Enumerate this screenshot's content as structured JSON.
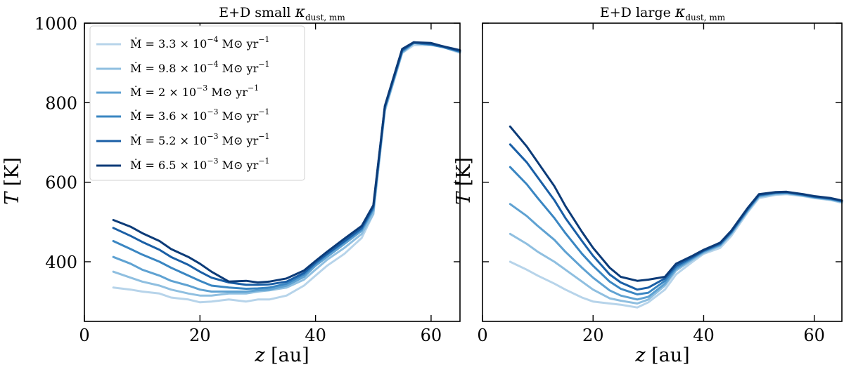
{
  "chart_data": [
    {
      "type": "line",
      "title": {
        "main": "E+D small ",
        "symbol": "κ",
        "subscript": "dust, mm"
      },
      "xlabel": {
        "var": "z",
        "unit": " [au]"
      },
      "ylabel": {
        "var": "T",
        "unit": " [K]"
      },
      "xlim": [
        0,
        65
      ],
      "ylim": [
        250,
        1000
      ],
      "xticks": [
        0,
        20,
        40,
        60
      ],
      "yticks": [
        400,
        600,
        800,
        1000
      ],
      "show_ytick_labels": true,
      "legend": "top-left",
      "series": [
        {
          "name": "Mdot_3.3e-4",
          "x": [
            5,
            8,
            10,
            13,
            15,
            18,
            20,
            22,
            25,
            28,
            30,
            32,
            35,
            38,
            40,
            42,
            45,
            48,
            50,
            52,
            55,
            57,
            60,
            62,
            65
          ],
          "y": [
            335,
            330,
            325,
            320,
            310,
            305,
            298,
            300,
            305,
            300,
            305,
            305,
            315,
            340,
            365,
            390,
            420,
            460,
            520,
            780,
            925,
            945,
            945,
            940,
            925
          ]
        },
        {
          "name": "Mdot_9.8e-4",
          "x": [
            5,
            8,
            10,
            13,
            15,
            18,
            20,
            22,
            25,
            28,
            30,
            32,
            35,
            38,
            40,
            42,
            45,
            48,
            50,
            52,
            55,
            57,
            60,
            62,
            65
          ],
          "y": [
            375,
            360,
            350,
            340,
            330,
            320,
            315,
            315,
            320,
            320,
            325,
            328,
            335,
            355,
            380,
            405,
            435,
            470,
            520,
            780,
            925,
            950,
            948,
            940,
            928
          ]
        },
        {
          "name": "Mdot_2e-3",
          "x": [
            5,
            8,
            10,
            13,
            15,
            18,
            20,
            22,
            25,
            28,
            30,
            32,
            35,
            38,
            40,
            42,
            45,
            48,
            50,
            52,
            55,
            57,
            60,
            62,
            65
          ],
          "y": [
            412,
            395,
            380,
            365,
            352,
            340,
            330,
            325,
            325,
            325,
            328,
            330,
            340,
            362,
            390,
            412,
            445,
            478,
            530,
            785,
            928,
            950,
            946,
            940,
            928
          ]
        },
        {
          "name": "Mdot_3.6e-3",
          "x": [
            5,
            8,
            10,
            13,
            15,
            18,
            20,
            22,
            25,
            28,
            30,
            32,
            35,
            38,
            40,
            42,
            45,
            48,
            50,
            52,
            55,
            57,
            60,
            62,
            65
          ],
          "y": [
            452,
            432,
            418,
            400,
            385,
            365,
            352,
            340,
            335,
            332,
            333,
            335,
            345,
            368,
            395,
            418,
            450,
            482,
            535,
            788,
            930,
            950,
            946,
            940,
            928
          ]
        },
        {
          "name": "Mdot_5.2e-3",
          "x": [
            5,
            8,
            10,
            13,
            15,
            18,
            20,
            22,
            25,
            28,
            30,
            32,
            35,
            38,
            40,
            42,
            45,
            48,
            50,
            52,
            55,
            57,
            60,
            62,
            65
          ],
          "y": [
            485,
            465,
            450,
            430,
            412,
            392,
            375,
            360,
            348,
            342,
            342,
            343,
            350,
            372,
            398,
            420,
            452,
            485,
            538,
            790,
            932,
            952,
            948,
            942,
            930
          ]
        },
        {
          "name": "Mdot_6.5e-3",
          "x": [
            5,
            8,
            10,
            13,
            15,
            18,
            20,
            22,
            25,
            28,
            30,
            32,
            35,
            38,
            40,
            42,
            45,
            48,
            50,
            52,
            55,
            57,
            60,
            62,
            65
          ],
          "y": [
            505,
            488,
            472,
            452,
            432,
            412,
            395,
            375,
            350,
            352,
            348,
            350,
            358,
            378,
            402,
            425,
            458,
            490,
            542,
            792,
            935,
            952,
            950,
            942,
            932
          ]
        }
      ]
    },
    {
      "type": "line",
      "title": {
        "main": "E+D large ",
        "symbol": "κ",
        "subscript": "dust, mm"
      },
      "xlabel": {
        "var": "z",
        "unit": " [au]"
      },
      "ylabel": {
        "var": "T",
        "unit": " [K]"
      },
      "xlim": [
        0,
        65
      ],
      "ylim": [
        250,
        1000
      ],
      "xticks": [
        0,
        20,
        40,
        60
      ],
      "yticks": [
        400,
        600,
        800,
        1000
      ],
      "show_ytick_labels": false,
      "series": [
        {
          "name": "Mdot_3.3e-4",
          "x": [
            5,
            8,
            10,
            13,
            15,
            18,
            20,
            23,
            25,
            28,
            30,
            33,
            35,
            38,
            40,
            43,
            45,
            48,
            50,
            53,
            55,
            58,
            60,
            63,
            65
          ],
          "y": [
            400,
            380,
            365,
            345,
            330,
            310,
            300,
            295,
            292,
            285,
            298,
            330,
            368,
            400,
            420,
            435,
            465,
            525,
            560,
            568,
            570,
            565,
            560,
            555,
            548
          ]
        },
        {
          "name": "Mdot_9.8e-4",
          "x": [
            5,
            8,
            10,
            13,
            15,
            18,
            20,
            23,
            25,
            28,
            30,
            33,
            35,
            38,
            40,
            43,
            45,
            48,
            50,
            53,
            55,
            58,
            60,
            63,
            65
          ],
          "y": [
            470,
            445,
            425,
            400,
            380,
            350,
            330,
            308,
            302,
            295,
            305,
            340,
            378,
            405,
            422,
            440,
            470,
            528,
            563,
            570,
            572,
            566,
            561,
            556,
            550
          ]
        },
        {
          "name": "Mdot_2e-3",
          "x": [
            5,
            8,
            10,
            13,
            15,
            18,
            20,
            23,
            25,
            28,
            30,
            33,
            35,
            38,
            40,
            43,
            45,
            48,
            50,
            53,
            55,
            58,
            60,
            63,
            65
          ],
          "y": [
            545,
            515,
            490,
            455,
            425,
            385,
            360,
            328,
            315,
            305,
            312,
            345,
            382,
            408,
            425,
            442,
            472,
            530,
            565,
            572,
            573,
            567,
            562,
            557,
            551
          ]
        },
        {
          "name": "Mdot_3.6e-3",
          "x": [
            5,
            8,
            10,
            13,
            15,
            18,
            20,
            23,
            25,
            28,
            30,
            33,
            35,
            38,
            40,
            43,
            45,
            48,
            50,
            53,
            55,
            58,
            60,
            63,
            65
          ],
          "y": [
            638,
            595,
            560,
            510,
            472,
            420,
            390,
            350,
            332,
            318,
            322,
            352,
            386,
            410,
            427,
            444,
            474,
            532,
            567,
            573,
            574,
            568,
            563,
            558,
            552
          ]
        },
        {
          "name": "Mdot_5.2e-3",
          "x": [
            5,
            8,
            10,
            13,
            15,
            18,
            20,
            23,
            25,
            28,
            30,
            33,
            35,
            38,
            40,
            43,
            45,
            48,
            50,
            53,
            55,
            58,
            60,
            63,
            65
          ],
          "y": [
            695,
            650,
            612,
            555,
            510,
            452,
            415,
            368,
            348,
            330,
            335,
            358,
            390,
            412,
            428,
            446,
            476,
            534,
            568,
            574,
            575,
            569,
            564,
            559,
            553
          ]
        },
        {
          "name": "Mdot_6.5e-3",
          "x": [
            5,
            8,
            10,
            13,
            15,
            18,
            20,
            23,
            25,
            28,
            30,
            33,
            35,
            38,
            40,
            43,
            45,
            48,
            50,
            53,
            55,
            58,
            60,
            63,
            65
          ],
          "y": [
            740,
            690,
            650,
            590,
            540,
            475,
            435,
            385,
            362,
            352,
            355,
            362,
            395,
            415,
            430,
            448,
            478,
            536,
            570,
            575,
            576,
            570,
            565,
            560,
            554
          ]
        }
      ]
    }
  ],
  "legend": {
    "items": [
      {
        "label": "Ṁ = 3.3 × 10",
        "exp": "−4",
        "unit": " M⊙ yr",
        "unit_exp": "−1"
      },
      {
        "label": "Ṁ = 9.8 × 10",
        "exp": "−4",
        "unit": " M⊙ yr",
        "unit_exp": "−1"
      },
      {
        "label": "Ṁ = 2 × 10",
        "exp": "−3",
        "unit": " M⊙ yr",
        "unit_exp": "−1"
      },
      {
        "label": "Ṁ = 3.6 × 10",
        "exp": "−3",
        "unit": " M⊙ yr",
        "unit_exp": "−1"
      },
      {
        "label": "Ṁ = 5.2 × 10",
        "exp": "−3",
        "unit": " M⊙ yr",
        "unit_exp": "−1"
      },
      {
        "label": "Ṁ = 6.5 × 10",
        "exp": "−3",
        "unit": " M⊙ yr",
        "unit_exp": "−1"
      }
    ]
  },
  "colors": {
    "series": [
      "#b7d4ea",
      "#8fbfe0",
      "#5fa2d2",
      "#3a86c2",
      "#1a5fa6",
      "#0c3b78"
    ],
    "frame": "#000000",
    "background": "#ffffff"
  }
}
